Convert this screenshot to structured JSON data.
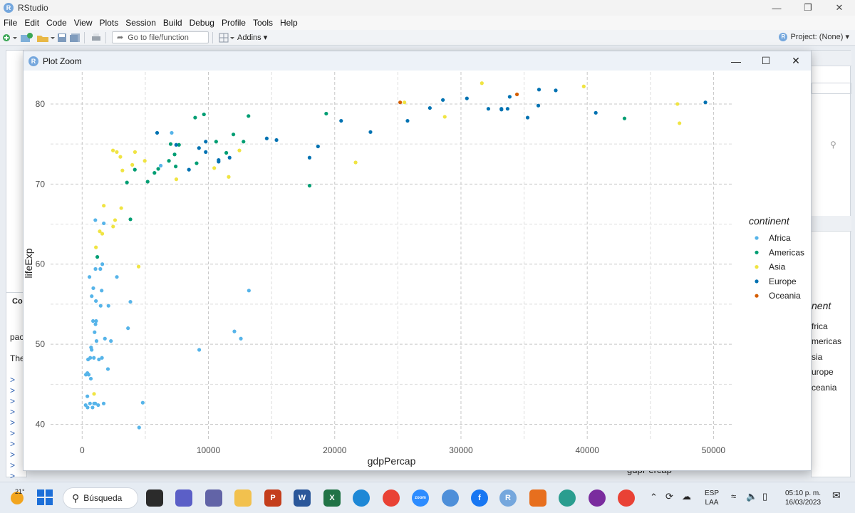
{
  "app": {
    "title": "RStudio"
  },
  "menu": [
    "File",
    "Edit",
    "Code",
    "View",
    "Plots",
    "Session",
    "Build",
    "Debug",
    "Profile",
    "Tools",
    "Help"
  ],
  "toolbar": {
    "goto_placeholder": "Go to file/function",
    "addins_label": "Addins",
    "project_label": "Project: (None)"
  },
  "background": {
    "console_label": "Co",
    "console_line1": "pac",
    "console_line2": "The",
    "legend_title": "nent",
    "legend_items": [
      "frica",
      "mericas",
      "sia",
      "urope",
      "ceania"
    ],
    "xlabel": "gdpPercap"
  },
  "zoom_window": {
    "title": "Plot Zoom"
  },
  "taskbar": {
    "weather": "21°",
    "search_label": "Búsqueda",
    "lang1": "ESP",
    "lang2": "LAA",
    "time": "05:10 p. m.",
    "date": "16/03/2023"
  },
  "colors": {
    "Africa": "#56B4E9",
    "Americas": "#009E73",
    "Asia": "#F0E442",
    "Europe": "#0072B2",
    "Oceania": "#D55E00"
  },
  "chart_data": {
    "type": "scatter",
    "xlabel": "gdpPercap",
    "ylabel": "lifeExp",
    "xlim": [
      -2500,
      51500
    ],
    "ylim": [
      38,
      84
    ],
    "xticks": [
      0,
      10000,
      20000,
      30000,
      40000,
      50000
    ],
    "yticks": [
      40,
      50,
      60,
      70,
      80
    ],
    "grid": "dashed",
    "legend": {
      "title": "continent",
      "position": "right"
    },
    "series": [
      {
        "name": "Africa",
        "color": "#56B4E9",
        "points": [
          [
            277,
            42.4
          ],
          [
            298,
            46.2
          ],
          [
            413,
            43.5
          ],
          [
            415,
            46.4
          ],
          [
            431,
            42.1
          ],
          [
            470,
            48.1
          ],
          [
            521,
            46.2
          ],
          [
            580,
            58.4
          ],
          [
            619,
            42.6
          ],
          [
            641,
            48.3
          ],
          [
            689,
            45.7
          ],
          [
            706,
            49.6
          ],
          [
            753,
            49.3
          ],
          [
            759,
            56.0
          ],
          [
            824,
            42.1
          ],
          [
            863,
            52.9
          ],
          [
            883,
            57.0
          ],
          [
            926,
            48.3
          ],
          [
            943,
            42.6
          ],
          [
            986,
            51.5
          ],
          [
            1042,
            42.6
          ],
          [
            1044,
            65.5
          ],
          [
            1056,
            59.4
          ],
          [
            1057,
            52.5
          ],
          [
            1091,
            55.4
          ],
          [
            1108,
            52.9
          ],
          [
            1137,
            50.4
          ],
          [
            1271,
            42.4
          ],
          [
            1328,
            48.1
          ],
          [
            1441,
            59.4
          ],
          [
            1464,
            54.8
          ],
          [
            1545,
            56.7
          ],
          [
            1569,
            48.3
          ],
          [
            1598,
            60.0
          ],
          [
            1704,
            42.6
          ],
          [
            1713,
            65.1
          ],
          [
            1803,
            50.7
          ],
          [
            2042,
            46.9
          ],
          [
            2082,
            54.8
          ],
          [
            2280,
            50.4
          ],
          [
            2749,
            58.4
          ],
          [
            3633,
            52.0
          ],
          [
            3820,
            55.3
          ],
          [
            4513,
            39.6
          ],
          [
            4797,
            42.7
          ],
          [
            6223,
            72.3
          ],
          [
            7093,
            76.4
          ],
          [
            9270,
            49.3
          ],
          [
            12057,
            51.6
          ],
          [
            12570,
            50.7
          ],
          [
            13206,
            56.7
          ]
        ]
      },
      {
        "name": "Americas",
        "color": "#009E73",
        "points": [
          [
            1202,
            60.9
          ],
          [
            3548,
            70.2
          ],
          [
            3822,
            65.6
          ],
          [
            4173,
            71.8
          ],
          [
            5186,
            70.3
          ],
          [
            5728,
            71.4
          ],
          [
            6025,
            71.9
          ],
          [
            6873,
            72.9
          ],
          [
            7006,
            75.0
          ],
          [
            7321,
            73.7
          ],
          [
            7409,
            72.2
          ],
          [
            7670,
            74.9
          ],
          [
            8948,
            78.3
          ],
          [
            9065,
            72.6
          ],
          [
            9645,
            78.7
          ],
          [
            10611,
            75.3
          ],
          [
            11416,
            73.9
          ],
          [
            11978,
            76.2
          ],
          [
            12779,
            75.3
          ],
          [
            13172,
            78.5
          ],
          [
            18009,
            69.8
          ],
          [
            19328,
            78.8
          ],
          [
            42952,
            78.2
          ]
        ]
      },
      {
        "name": "Asia",
        "color": "#F0E442",
        "points": [
          [
            944,
            43.8
          ],
          [
            1091,
            62.1
          ],
          [
            1391,
            64.1
          ],
          [
            1593,
            63.8
          ],
          [
            1714,
            67.3
          ],
          [
            2452,
            64.7
          ],
          [
            2606,
            65.5
          ],
          [
            3095,
            67.0
          ],
          [
            3190,
            71.7
          ],
          [
            4471,
            59.7
          ],
          [
            4959,
            72.9
          ],
          [
            7458,
            70.6
          ],
          [
            10461,
            72.0
          ],
          [
            11606,
            70.9
          ],
          [
            12452,
            74.2
          ],
          [
            21655,
            72.7
          ],
          [
            25523,
            80.2
          ],
          [
            28718,
            78.4
          ],
          [
            31656,
            82.6
          ],
          [
            39725,
            82.2
          ],
          [
            47143,
            80.0
          ],
          [
            47306,
            77.6
          ],
          [
            2742,
            74.0
          ],
          [
            3970,
            72.4
          ],
          [
            3025,
            73.4
          ],
          [
            2441,
            74.2
          ],
          [
            4185,
            74.0
          ]
        ]
      },
      {
        "name": "Europe",
        "color": "#0072B2",
        "points": [
          [
            5937,
            76.4
          ],
          [
            7446,
            74.9
          ],
          [
            8458,
            71.8
          ],
          [
            9254,
            74.5
          ],
          [
            9787,
            75.3
          ],
          [
            10808,
            72.8
          ],
          [
            11675,
            73.3
          ],
          [
            15390,
            75.5
          ],
          [
            18008,
            73.3
          ],
          [
            18678,
            74.7
          ],
          [
            20510,
            77.9
          ],
          [
            22833,
            76.5
          ],
          [
            25768,
            77.9
          ],
          [
            27538,
            79.5
          ],
          [
            28570,
            80.5
          ],
          [
            30470,
            80.7
          ],
          [
            32170,
            79.4
          ],
          [
            33203,
            79.4
          ],
          [
            33692,
            79.4
          ],
          [
            33860,
            80.9
          ],
          [
            36126,
            79.8
          ],
          [
            36181,
            81.8
          ],
          [
            37506,
            81.7
          ],
          [
            40676,
            78.9
          ],
          [
            49357,
            80.2
          ],
          [
            14619,
            75.7
          ],
          [
            35278,
            78.3
          ],
          [
            33207,
            79.3
          ],
          [
            10808,
            73.0
          ],
          [
            9787,
            74.0
          ]
        ]
      },
      {
        "name": "Oceania",
        "color": "#D55E00",
        "points": [
          [
            25185,
            80.2
          ],
          [
            34435,
            81.2
          ]
        ]
      }
    ]
  }
}
